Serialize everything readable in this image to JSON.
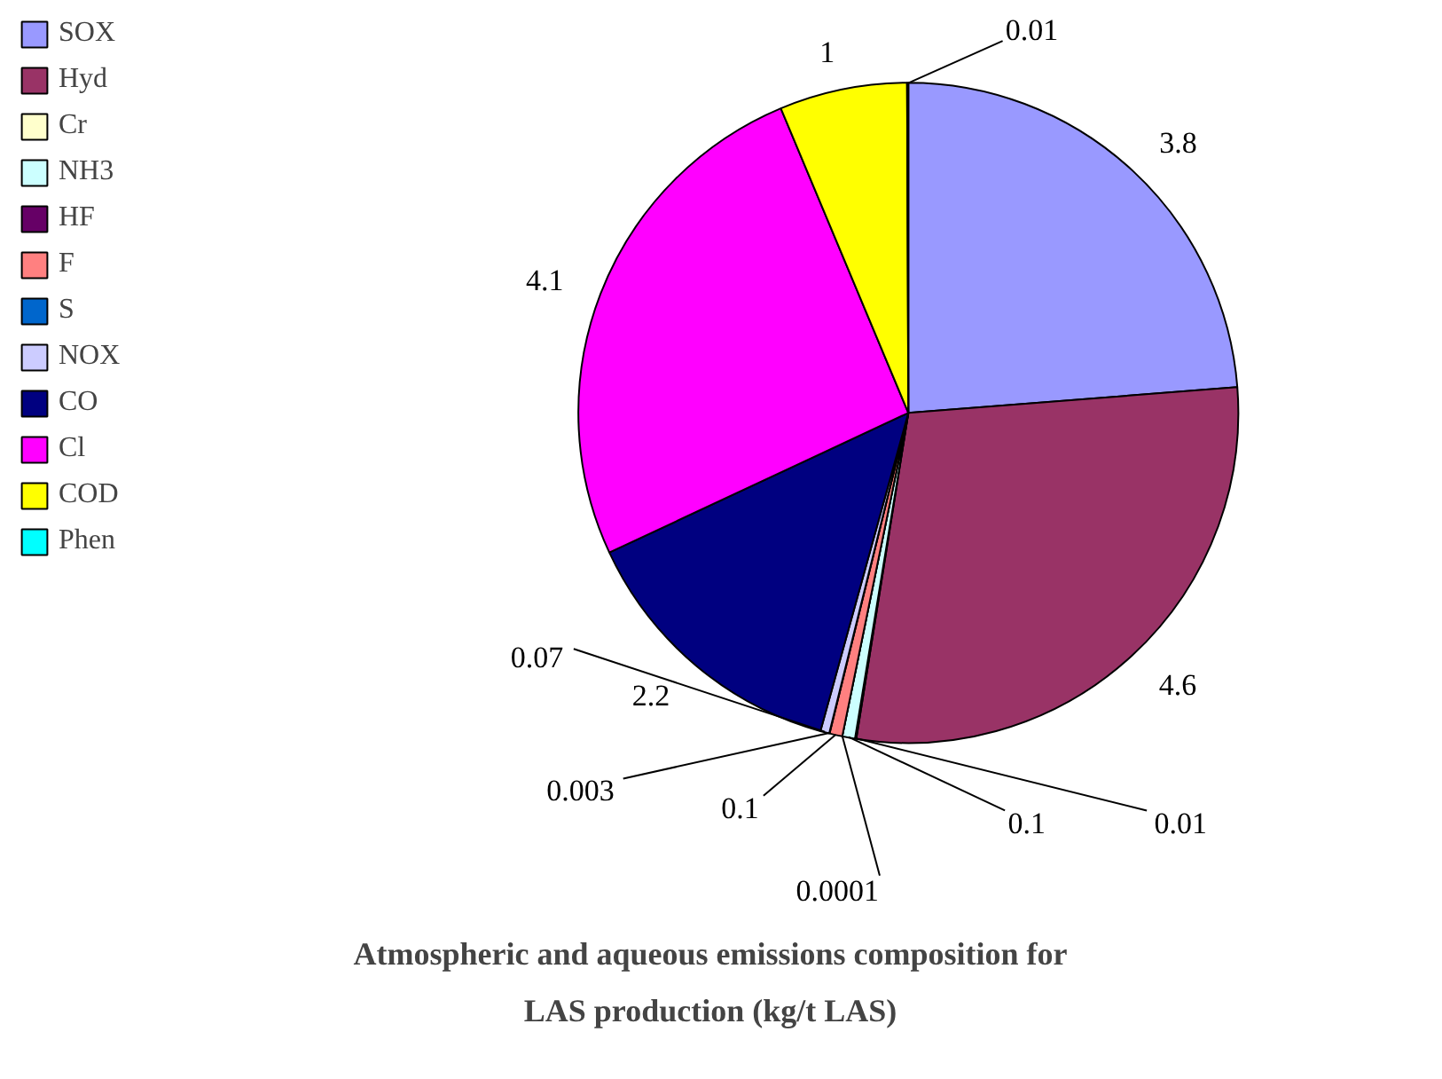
{
  "chart_data": {
    "type": "pie",
    "title": "Atmospheric and aqueous emissions composition for LAS production (kg/t LAS)",
    "categories": [
      "SOX",
      "Hyd",
      "Cr",
      "NH3",
      "HF",
      "F",
      "S",
      "NOX",
      "CO",
      "Cl",
      "COD",
      "Phen"
    ],
    "values": [
      3.8,
      4.6,
      0.01,
      0.1,
      0.0001,
      0.1,
      0.003,
      0.07,
      2.2,
      4.1,
      1,
      0.01
    ],
    "colors": [
      "#9999ff",
      "#993366",
      "#ffffcc",
      "#ccffff",
      "#660066",
      "#ff8080",
      "#0066cc",
      "#ccccff",
      "#000080",
      "#ff00ff",
      "#ffff00",
      "#00ffff"
    ],
    "data_labels": true,
    "legend": "left"
  }
}
